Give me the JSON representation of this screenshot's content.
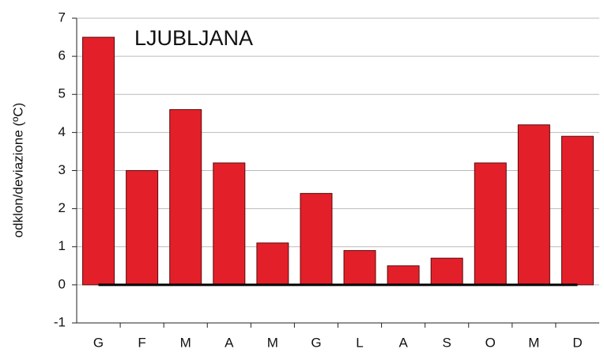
{
  "chart_data": {
    "type": "bar",
    "title": "LJUBLJANA",
    "y_label": "odklon/deviazione (ºC)",
    "categories": [
      "G",
      "F",
      "M",
      "A",
      "M",
      "G",
      "L",
      "A",
      "S",
      "O",
      "M",
      "D"
    ],
    "values": [
      6.5,
      3.0,
      4.6,
      3.2,
      1.1,
      2.4,
      0.9,
      0.5,
      0.7,
      3.2,
      4.2,
      3.9
    ],
    "color": "#e3202a",
    "ylim": [
      -1,
      7
    ],
    "yticks": [
      -1,
      0,
      1,
      2,
      3,
      4,
      5,
      6,
      7
    ],
    "grid": true
  }
}
